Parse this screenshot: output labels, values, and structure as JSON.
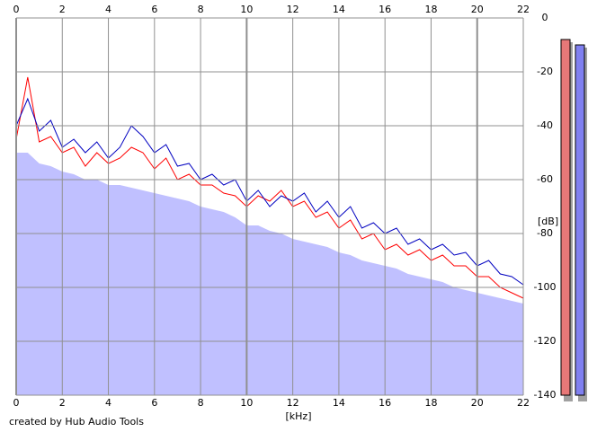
{
  "chart_data": {
    "type": "line",
    "x_label": "[kHz]",
    "y_label": "[dB]",
    "footer": "created by Hub Audio Tools",
    "x": [
      0,
      0.5,
      1,
      1.5,
      2,
      2.5,
      3,
      3.5,
      4,
      4.5,
      5,
      5.5,
      6,
      6.5,
      7,
      7.5,
      8,
      8.5,
      9,
      9.5,
      10,
      10.5,
      11,
      11.5,
      12,
      12.5,
      13,
      13.5,
      14,
      14.5,
      15,
      15.5,
      16,
      16.5,
      17,
      17.5,
      18,
      18.5,
      19,
      19.5,
      20,
      20.5,
      21,
      21.5,
      22
    ],
    "series": [
      {
        "color": "#c0c0ff",
        "fill": true,
        "values": [
          -50,
          -50,
          -54,
          -55,
          -57,
          -58,
          -60,
          -60,
          -62,
          -62,
          -63,
          -64,
          -65,
          -66,
          -67,
          -68,
          -70,
          -71,
          -72,
          -74,
          -77,
          -77,
          -79,
          -80,
          -82,
          -83,
          -84,
          -85,
          -87,
          -88,
          -90,
          -91,
          -92,
          -93,
          -95,
          -96,
          -97,
          -98,
          -100,
          -101,
          -102,
          -103,
          -104,
          -105,
          -106
        ]
      },
      {
        "color": "#ff0000",
        "fill": false,
        "values": [
          -45,
          -22,
          -46,
          -44,
          -50,
          -48,
          -55,
          -50,
          -54,
          -52,
          -48,
          -50,
          -56,
          -52,
          -60,
          -58,
          -62,
          -62,
          -65,
          -66,
          -70,
          -66,
          -68,
          -64,
          -70,
          -68,
          -74,
          -72,
          -78,
          -75,
          -82,
          -80,
          -86,
          -84,
          -88,
          -86,
          -90,
          -88,
          -92,
          -92,
          -96,
          -96,
          -100,
          -102,
          -104
        ]
      },
      {
        "color": "#0000c0",
        "fill": false,
        "values": [
          -40,
          -30,
          -42,
          -38,
          -48,
          -45,
          -50,
          -46,
          -52,
          -48,
          -40,
          -44,
          -50,
          -47,
          -55,
          -54,
          -60,
          -58,
          -62,
          -60,
          -68,
          -64,
          -70,
          -66,
          -68,
          -65,
          -72,
          -68,
          -74,
          -70,
          -78,
          -76,
          -80,
          -78,
          -84,
          -82,
          -86,
          -84,
          -88,
          -87,
          -92,
          -90,
          -95,
          -96,
          -99
        ]
      }
    ],
    "xlim": [
      0,
      22
    ],
    "xticks": [
      0,
      2,
      4,
      6,
      8,
      10,
      12,
      14,
      16,
      18,
      20,
      22
    ],
    "ylim": [
      -140,
      0
    ],
    "yticks": [
      0,
      -20,
      -40,
      -60,
      -80,
      -100,
      -120,
      -140
    ],
    "grid": true,
    "meters": [
      {
        "color": "#e87878",
        "value": -8
      },
      {
        "color": "#8080f0",
        "value": -10
      }
    ]
  }
}
